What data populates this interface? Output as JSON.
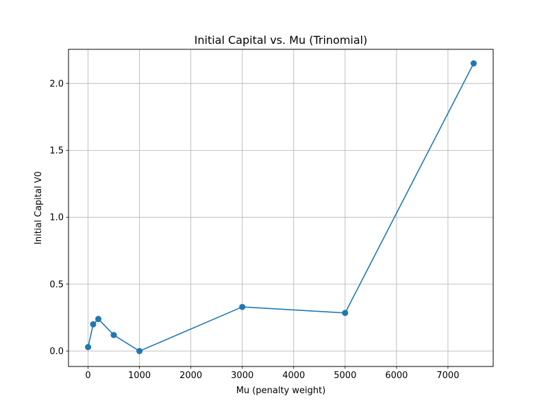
{
  "chart_data": {
    "type": "line",
    "title": "Initial Capital vs. Mu (Trinomial)",
    "xlabel": "Mu (penalty weight)",
    "ylabel": "Initial Capital V0",
    "xlim": [
      -380,
      7880
    ],
    "ylim": [
      -0.115,
      2.255
    ],
    "x_ticks": [
      0,
      1000,
      2000,
      3000,
      4000,
      5000,
      6000,
      7000
    ],
    "x_tick_labels": [
      "0",
      "1000",
      "2000",
      "3000",
      "4000",
      "5000",
      "6000",
      "7000"
    ],
    "y_ticks": [
      0.0,
      0.5,
      1.0,
      1.5,
      2.0
    ],
    "y_tick_labels": [
      "0.0",
      "0.5",
      "1.0",
      "1.5",
      "2.0"
    ],
    "grid": true,
    "series": [
      {
        "color": "#1f77b4",
        "marker": "circle",
        "x": [
          1,
          100,
          200,
          500,
          1000,
          3000,
          5000,
          7500
        ],
        "y": [
          0.03,
          0.2,
          0.24,
          0.12,
          0.0,
          0.33,
          0.285,
          2.15
        ]
      }
    ]
  }
}
